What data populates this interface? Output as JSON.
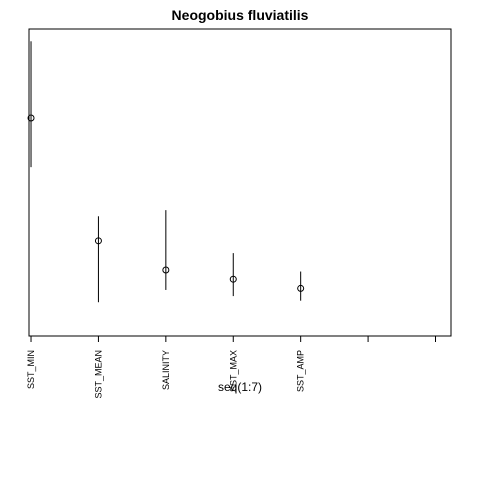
{
  "chart_data": {
    "type": "errorbar",
    "title": "Neogobius fluviatilis",
    "xlabel": "seq(1:7)",
    "ylabel": "",
    "grid": false,
    "legend": "none",
    "categories": [
      "SST_MIN",
      "SST_MEAN",
      "SALINITY",
      "SST_MAX",
      "SST_AMP",
      "",
      ""
    ],
    "x": [
      1,
      2,
      3,
      4,
      5,
      6,
      7
    ],
    "xlim": [
      0.97,
      7.23
    ],
    "ylim": [
      0,
      1
    ],
    "points": [
      {
        "x": 1,
        "value": 0.71,
        "lower": 0.55,
        "upper": 0.96
      },
      {
        "x": 2,
        "value": 0.31,
        "lower": 0.11,
        "upper": 0.39
      },
      {
        "x": 3,
        "value": 0.215,
        "lower": 0.15,
        "upper": 0.41
      },
      {
        "x": 4,
        "value": 0.185,
        "lower": 0.13,
        "upper": 0.27
      },
      {
        "x": 5,
        "value": 0.155,
        "lower": 0.115,
        "upper": 0.21
      }
    ]
  }
}
